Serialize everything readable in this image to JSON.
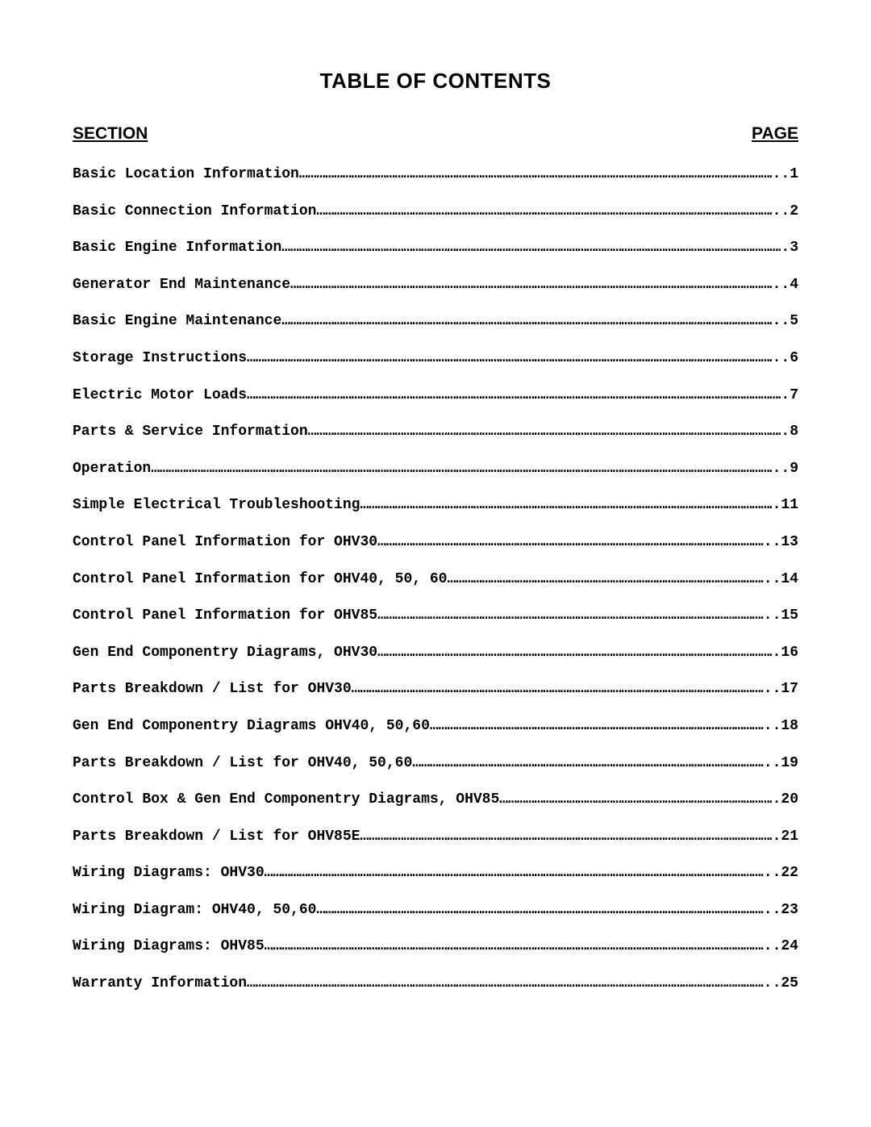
{
  "title": "TABLE OF CONTENTS",
  "header": {
    "section": "SECTION",
    "page": "PAGE"
  },
  "entries": [
    {
      "label": "Basic Location Information",
      "page": "..1"
    },
    {
      "label": "Basic Connection Information",
      "page": "..2"
    },
    {
      "label": "Basic Engine Information",
      "page": ".3"
    },
    {
      "label": "Generator End Maintenance",
      "page": "..4"
    },
    {
      "label": "Basic Engine Maintenance",
      "page": "..5"
    },
    {
      "label": "Storage Instructions",
      "page": "..6"
    },
    {
      "label": "Electric Motor Loads",
      "page": ".7"
    },
    {
      "label": "Parts & Service Information",
      "page": ".8"
    },
    {
      "label": "Operation",
      "page": "..9"
    },
    {
      "label": "Simple Electrical Troubleshooting",
      "page": ".11"
    },
    {
      "label": "Control Panel Information for OHV30",
      "page": "..13"
    },
    {
      "label": "Control Panel Information for OHV40, 50, 60",
      "page": "..14"
    },
    {
      "label": "Control Panel Information for OHV85",
      "page": "..15"
    },
    {
      "label": "Gen End Componentry Diagrams, OHV30",
      "page": ".16"
    },
    {
      "label": "Parts Breakdown / List for OHV30",
      "page": "..17"
    },
    {
      "label": "Gen End Componentry Diagrams OHV40, 50,60",
      "page": "..18"
    },
    {
      "label": "Parts Breakdown / List for OHV40, 50,60",
      "page": "..19"
    },
    {
      "label": "Control Box & Gen End Componentry Diagrams, OHV85",
      "page": ".20"
    },
    {
      "label": "Parts Breakdown / List for OHV85E",
      "page": ".21"
    },
    {
      "label": "Wiring Diagrams: OHV30",
      "page": "..22"
    },
    {
      "label": "Wiring Diagram: OHV40, 50,60",
      "page": "..23"
    },
    {
      "label": "Wiring Diagrams: OHV85",
      "page": "..24"
    },
    {
      "label": "Warranty Information",
      "page": "..25"
    }
  ],
  "style": {
    "background_color": "#ffffff",
    "text_color": "#000000",
    "title_fontsize": 26,
    "header_fontsize": 21,
    "entry_fontsize": 18,
    "entry_font": "Courier New",
    "title_font": "Verdana"
  }
}
